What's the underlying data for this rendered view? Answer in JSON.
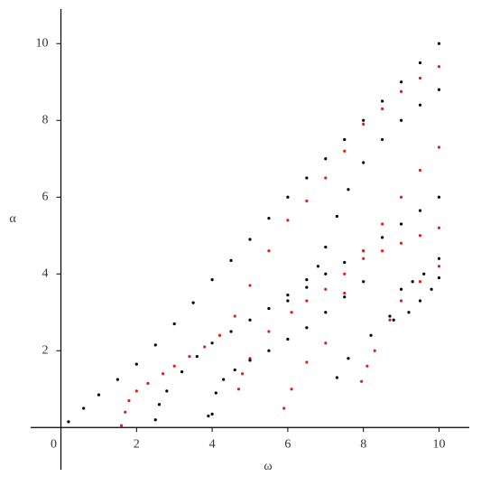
{
  "chart_data": {
    "type": "scatter",
    "x_label": "ω",
    "y_label": "α",
    "xlim": [
      -0.8,
      10.8
    ],
    "ylim": [
      -1.1,
      10.9
    ],
    "xticks": [
      0,
      2,
      4,
      6,
      8,
      10
    ],
    "yticks": [
      2,
      4,
      6,
      8,
      10
    ],
    "series": [
      {
        "color": "#000000",
        "x": [
          0.2,
          0.6,
          1,
          1.5,
          2,
          2.5,
          3,
          3.5,
          4,
          4.5,
          5,
          5.5,
          6,
          6.5,
          7,
          7.5,
          8,
          8.5,
          9,
          9.5,
          10
        ],
        "y": [
          0.15,
          0.5,
          0.85,
          1.25,
          1.65,
          2.15,
          2.7,
          3.25,
          3.85,
          4.35,
          4.9,
          5.45,
          6.0,
          6.5,
          7.0,
          7.5,
          8.0,
          8.5,
          9.0,
          9.5,
          10
        ]
      },
      {
        "color": "#e0201c",
        "x": [
          1.6,
          1.7,
          1.8,
          2,
          2.3,
          2.7,
          3,
          3.4,
          3.8,
          4.2,
          4.6,
          5,
          5.5,
          6,
          6.5,
          7,
          7.5,
          8,
          8.5,
          9,
          9.5,
          10
        ],
        "y": [
          0.05,
          0.4,
          0.7,
          0.95,
          1.15,
          1.4,
          1.6,
          1.85,
          2.1,
          2.4,
          2.9,
          3.7,
          4.6,
          5.4,
          5.9,
          6.5,
          7.2,
          7.9,
          8.3,
          8.75,
          9.1,
          9.4
        ]
      },
      {
        "color": "#000000",
        "x": [
          2.5,
          2.6,
          2.8,
          3.2,
          3.6,
          4,
          4.5,
          5,
          5.5,
          6,
          6.5,
          6.8,
          7,
          7.3,
          7.6,
          8,
          8.5,
          9,
          9.5,
          10
        ],
        "y": [
          0.2,
          0.6,
          0.95,
          1.45,
          1.85,
          2.2,
          2.5,
          2.8,
          3.1,
          3.45,
          3.85,
          4.2,
          4.7,
          5.5,
          6.2,
          6.9,
          7.5,
          8.0,
          8.4,
          8.8
        ]
      },
      {
        "color": "#000000",
        "x": [
          6,
          6.5,
          7,
          7.5,
          8,
          8.5,
          9,
          9.5,
          10
        ],
        "y": [
          3.3,
          3.65,
          4.0,
          4.3,
          4.6,
          4.95,
          5.3,
          5.65,
          6.0
        ]
      },
      {
        "color": "#e0201c",
        "x": [
          4.7,
          4.8,
          5,
          5.5,
          6.1,
          6.5,
          7,
          7.5,
          8,
          8.5,
          9,
          9.5,
          10
        ],
        "y": [
          1.0,
          1.4,
          1.8,
          2.5,
          3.0,
          3.3,
          3.6,
          4.0,
          4.4,
          4.6,
          4.8,
          5.0,
          5.2
        ]
      },
      {
        "color": "#e0201c",
        "x": [
          5.9,
          6.1,
          6.5,
          7,
          7.5,
          8,
          8.5,
          9,
          9.5,
          10
        ],
        "y": [
          0.5,
          1.0,
          1.7,
          2.2,
          3.5,
          4.6,
          5.3,
          6.0,
          6.7,
          7.3
        ]
      },
      {
        "color": "#000000",
        "x": [
          3.9,
          4.0,
          4.1,
          4.3,
          4.6,
          5,
          5.5,
          6,
          6.5,
          7,
          7.5,
          8
        ],
        "y": [
          0.3,
          0.35,
          0.9,
          1.25,
          1.5,
          1.75,
          2.0,
          2.3,
          2.6,
          3.0,
          3.4,
          3.8
        ]
      },
      {
        "color": "#e0201c",
        "x": [
          7.95,
          8.1,
          8.3,
          8.7,
          9,
          9.5,
          10
        ],
        "y": [
          1.2,
          1.6,
          2.0,
          2.8,
          3.3,
          3.8,
          4.2
        ]
      },
      {
        "color": "#000000",
        "x": [
          7.3,
          7.6,
          8.2,
          8.7,
          9,
          9.3,
          9.6,
          10
        ],
        "y": [
          1.3,
          1.8,
          2.4,
          2.9,
          3.6,
          3.8,
          4.0,
          4.4
        ]
      },
      {
        "color": "#000000",
        "x": [
          8.8,
          9.2,
          9.5,
          9.8,
          10
        ],
        "y": [
          2.8,
          3.0,
          3.3,
          3.6,
          3.9
        ]
      }
    ]
  }
}
